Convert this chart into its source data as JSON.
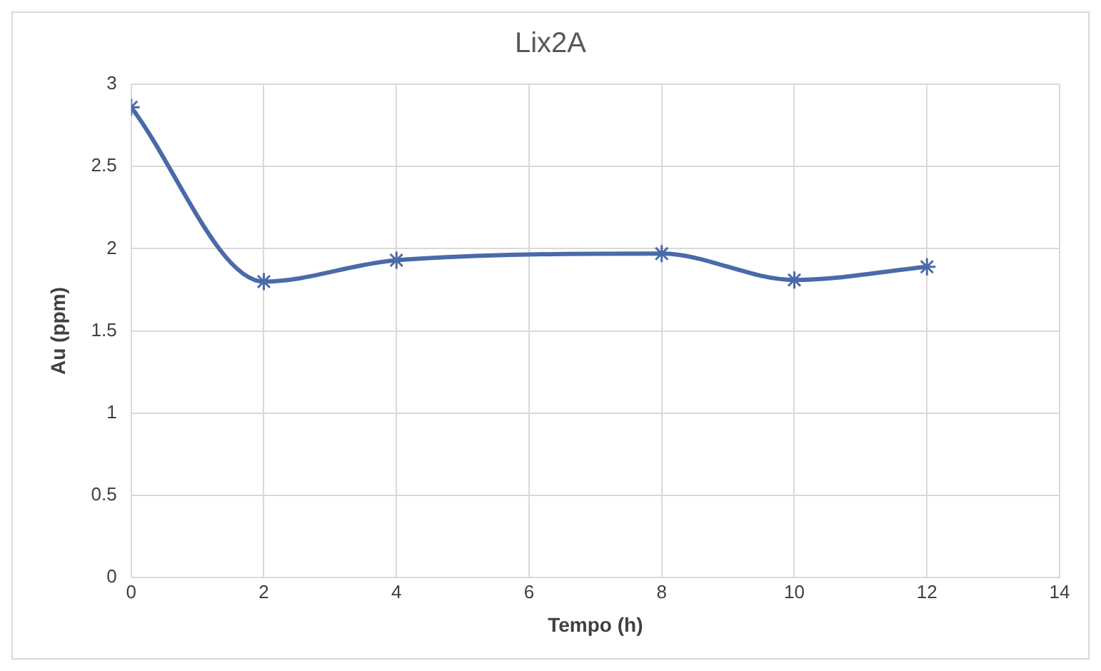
{
  "chart_data": {
    "type": "line",
    "title": "Lix2A",
    "xlabel": "Tempo (h)",
    "ylabel": "Au (ppm)",
    "x": [
      0,
      2,
      4,
      8,
      10,
      12
    ],
    "series": [
      {
        "color": "#4a6aa8",
        "values": [
          2.86,
          1.8,
          1.93,
          1.97,
          1.81,
          1.89
        ]
      }
    ],
    "xlim": [
      0,
      14
    ],
    "xticks": [
      0,
      2,
      4,
      6,
      8,
      10,
      12,
      14
    ],
    "ylim": [
      0,
      3
    ],
    "yticks": [
      0,
      0.5,
      1,
      1.5,
      2,
      2.5,
      3
    ],
    "grid": true,
    "legend": false,
    "marker": "cross",
    "line_style": "solid"
  }
}
